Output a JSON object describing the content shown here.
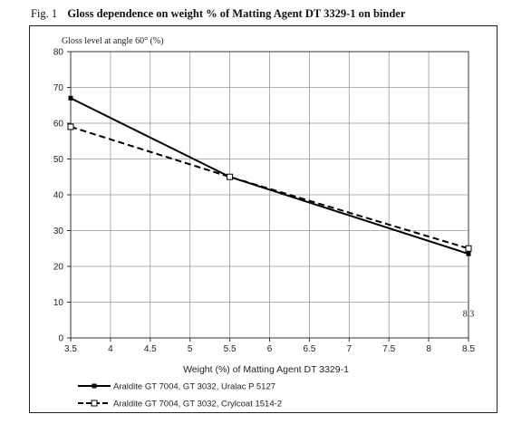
{
  "figure": {
    "number": "Fig. 1",
    "title": "Gloss dependence on weight % of Matting Agent DT 3329-1 on binder"
  },
  "chart_data": {
    "type": "line",
    "title": "Gloss dependence on weight % of Matting Agent DT 3329-1 on binder",
    "xlabel": "Weight (%) of Matting Agent DT 3329-1",
    "ylabel": "Gloss level at angle 60° (%)",
    "xlim": [
      3.5,
      8.5
    ],
    "ylim": [
      0,
      80
    ],
    "xticks": [
      3.5,
      4,
      4.5,
      5,
      5.5,
      6,
      6.5,
      7,
      7.5,
      8,
      8.5
    ],
    "yticks": [
      0,
      10,
      20,
      30,
      40,
      50,
      60,
      70,
      80
    ],
    "grid": true,
    "legend_position": "bottom",
    "annotation": {
      "text": "8.3",
      "x": 8.5,
      "y": 7
    },
    "series": [
      {
        "name": "Araldite GT 7004, GT 3032, Uralac P 5127",
        "style": "solid",
        "marker": "filled-square",
        "color": "#000000",
        "x": [
          3.5,
          5.5,
          8.5
        ],
        "y": [
          67,
          45,
          23.5
        ]
      },
      {
        "name": "Araldite GT 7004, GT 3032, Crylcoat 1514-2",
        "style": "dashed",
        "marker": "open-square",
        "color": "#000000",
        "x": [
          3.5,
          5.5,
          8.5
        ],
        "y": [
          59,
          45,
          25
        ]
      }
    ]
  }
}
